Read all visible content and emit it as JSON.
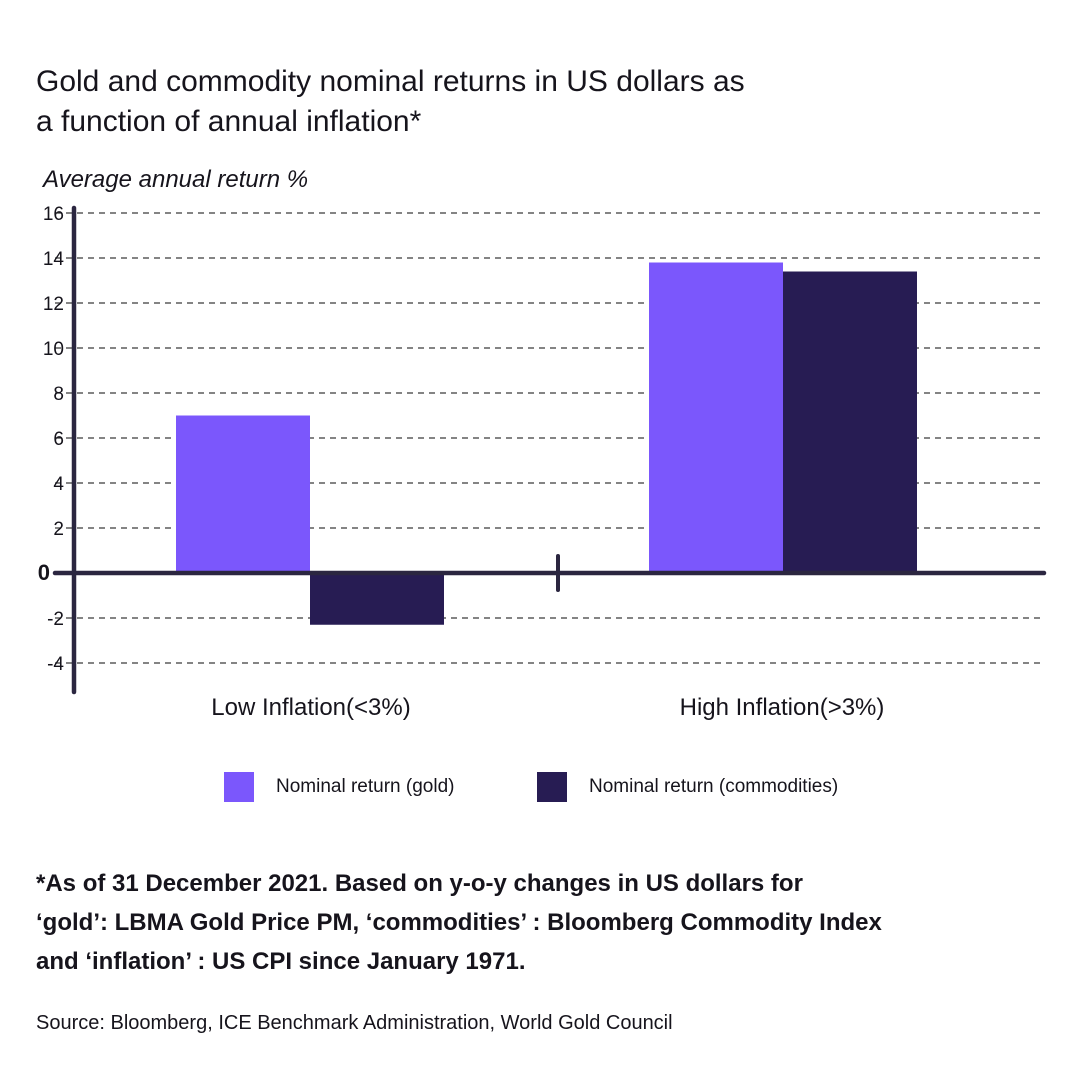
{
  "title_lines": [
    "Gold and commodity nominal returns in US dollars as",
    "a function of annual inflation*"
  ],
  "y_axis_label": "Average annual return %",
  "colors": {
    "gold": "#7b57fc",
    "commodities": "#271c53",
    "axis": "#2b2640",
    "grid": "#3a3a3a",
    "text": "#16141c"
  },
  "chart_data": {
    "type": "bar",
    "categories": [
      "Low Inflation(<3%)",
      "High Inflation(>3%)"
    ],
    "series": [
      {
        "name": "Nominal return (gold)",
        "values": [
          7.0,
          13.8
        ]
      },
      {
        "name": "Nominal return (commodities)",
        "values": [
          -2.3,
          13.4
        ]
      }
    ],
    "ylabel": "Average annual return %",
    "ylim": [
      -5,
      16
    ],
    "yticks": [
      16,
      14,
      12,
      10,
      8,
      6,
      4,
      2,
      0,
      -2,
      -4
    ],
    "grid": true,
    "legend": "bottom"
  },
  "footnote_lines": [
    "*As of 31 December 2021. Based on y-o-y changes in US dollars for",
    "‘gold’: LBMA Gold Price PM, ‘commodities’ : Bloomberg Commodity Index",
    "and ‘inflation’ : US CPI since January 1971."
  ],
  "source": "Source: Bloomberg, ICE Benchmark Administration, World Gold Council"
}
